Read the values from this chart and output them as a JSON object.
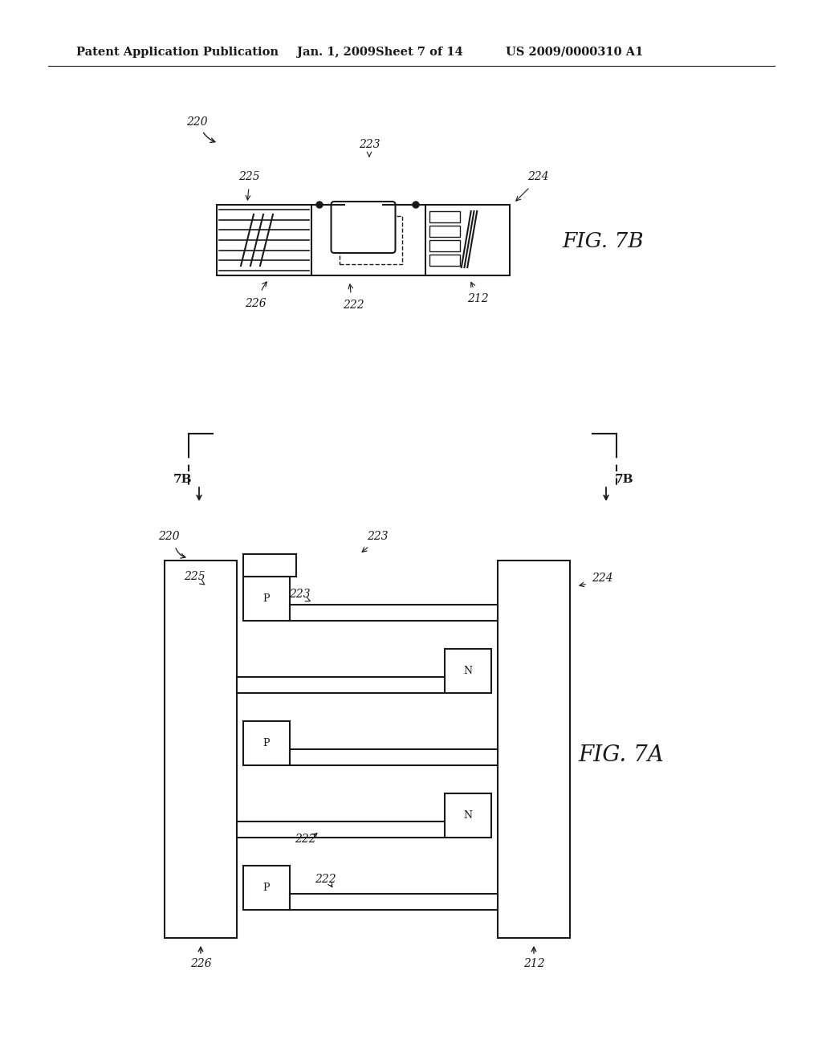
{
  "bg_color": "#ffffff",
  "line_color": "#1a1a1a",
  "header_text": "Patent Application Publication",
  "header_date": "Jan. 1, 2009",
  "header_sheet": "Sheet 7 of 14",
  "header_patent": "US 2009/0000310 A1",
  "fig7b_label": "FIG. 7B",
  "fig7a_label": "FIG. 7A"
}
